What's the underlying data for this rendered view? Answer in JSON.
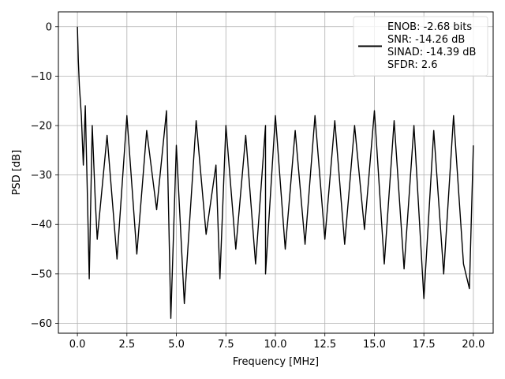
{
  "chart_data": {
    "type": "line",
    "title": "",
    "xlabel": "Frequency [MHz]",
    "ylabel": "PSD [dB]",
    "xlim": [
      -0.96,
      21.0
    ],
    "ylim": [
      -62.0,
      3.0
    ],
    "x_ticks": [
      0.0,
      2.5,
      5.0,
      7.5,
      10.0,
      12.5,
      15.0,
      17.5,
      20.0
    ],
    "x_tick_labels": [
      "0.0",
      "2.5",
      "5.0",
      "7.5",
      "10.0",
      "12.5",
      "15.0",
      "17.5",
      "20.0"
    ],
    "y_ticks": [
      0,
      -10,
      -20,
      -30,
      -40,
      -50,
      -60
    ],
    "y_tick_labels": [
      "0",
      "−10",
      "−20",
      "−30",
      "−40",
      "−50",
      "−60"
    ],
    "grid": true,
    "legend_position": "top-right",
    "legend": [
      "ENOB: -2.68 bits",
      "SNR: -14.26 dB",
      "SINAD: -14.39 dB",
      "SFDR: 2.6"
    ],
    "series": [
      {
        "color": "#000000",
        "x": [
          0.0,
          0.05,
          0.1,
          0.2,
          0.3,
          0.4,
          0.5,
          0.6,
          0.75,
          0.9,
          1.0,
          1.5,
          2.0,
          2.5,
          3.0,
          3.5,
          4.0,
          4.5,
          4.72,
          5.0,
          5.4,
          6.0,
          6.5,
          7.0,
          7.2,
          7.5,
          8.0,
          8.5,
          9.0,
          9.5,
          9.5,
          10.0,
          10.5,
          11.0,
          11.5,
          12.0,
          12.5,
          13.0,
          13.5,
          14.0,
          14.5,
          15.0,
          15.5,
          16.0,
          16.5,
          17.0,
          17.5,
          18.0,
          18.5,
          19.0,
          19.5,
          19.8,
          20.0
        ],
        "y": [
          0.0,
          -7.0,
          -12.0,
          -18.0,
          -28.0,
          -16.0,
          -33.0,
          -51.0,
          -20.0,
          -35.0,
          -43.0,
          -22.0,
          -47.0,
          -18.0,
          -46.0,
          -21.0,
          -37.0,
          -17.0,
          -59.0,
          -24.0,
          -56.0,
          -19.0,
          -42.0,
          -28.0,
          -51.0,
          -20.0,
          -45.0,
          -22.0,
          -48.0,
          -20.0,
          -50.0,
          -18.0,
          -45.0,
          -21.0,
          -44.0,
          -18.0,
          -43.0,
          -19.0,
          -44.0,
          -20.0,
          -41.0,
          -17.0,
          -48.0,
          -19.0,
          -49.0,
          -20.0,
          -55.0,
          -21.0,
          -50.0,
          -18.0,
          -48.0,
          -53.0,
          -24.0
        ]
      }
    ]
  }
}
